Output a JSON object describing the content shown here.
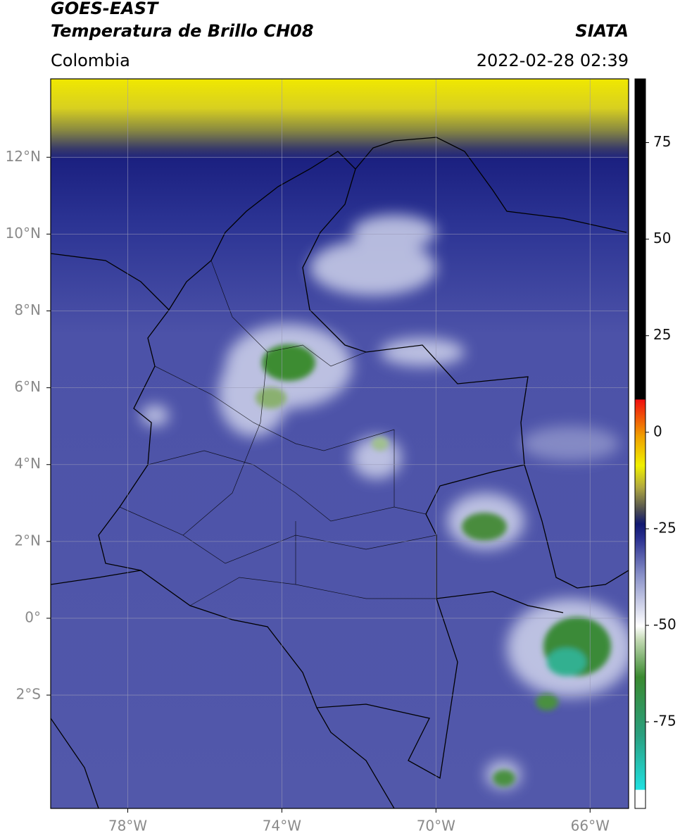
{
  "header": {
    "title": "GOES-EAST",
    "subtitle": "Temperatura de Brillo CH08",
    "source": "SIATA",
    "region": "Colombia",
    "timestamp": "2022-02-28 02:39"
  },
  "map": {
    "xlim": [
      -80,
      -65
    ],
    "ylim": [
      -4.95,
      14.04
    ],
    "xticks": [
      {
        "value": -78,
        "label": "78°W"
      },
      {
        "value": -74,
        "label": "74°W"
      },
      {
        "value": -70,
        "label": "70°W"
      },
      {
        "value": -66,
        "label": "66°W"
      }
    ],
    "yticks": [
      {
        "value": 12,
        "label": "12°N"
      },
      {
        "value": 10,
        "label": "10°N"
      },
      {
        "value": 8,
        "label": "8°N"
      },
      {
        "value": 6,
        "label": "6°N"
      },
      {
        "value": 4,
        "label": "4°N"
      },
      {
        "value": 2,
        "label": "2°N"
      },
      {
        "value": 0,
        "label": "0°"
      },
      {
        "value": -2,
        "label": "2°S"
      }
    ],
    "grid": true
  },
  "colorbar": {
    "lim": [
      -97.4,
      91.5
    ],
    "ticks": [
      75,
      50,
      25,
      0,
      -25,
      -50,
      -75
    ]
  }
}
